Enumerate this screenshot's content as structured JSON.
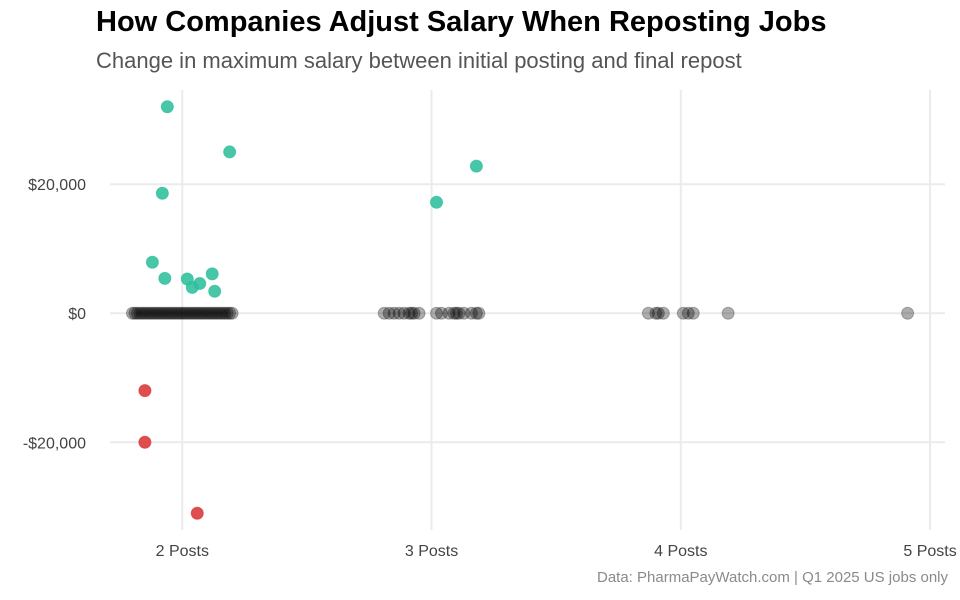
{
  "chart_data": {
    "type": "scatter",
    "title": "How Companies Adjust Salary When Reposting Jobs",
    "subtitle": "Change in maximum salary between initial posting and final repost",
    "caption": "Data: PharmaPayWatch.com | Q1 2025 US jobs only",
    "xlabel": "",
    "ylabel": "",
    "x_ticks": [
      {
        "value": 2,
        "label": "2 Posts"
      },
      {
        "value": 3,
        "label": "3 Posts"
      },
      {
        "value": 4,
        "label": "4 Posts"
      },
      {
        "value": 5,
        "label": "5 Posts"
      }
    ],
    "y_ticks": [
      {
        "value": 20000,
        "label": "$20,000"
      },
      {
        "value": 0,
        "label": "$0"
      },
      {
        "value": -20000,
        "label": "-$20,000"
      }
    ],
    "xlim": [
      1.71,
      5.06
    ],
    "ylim": [
      -33600,
      34600
    ],
    "grid": true,
    "colors": {
      "increase": "#2dbf9c",
      "decrease": "#d93636",
      "no_change": "#000000",
      "grid": "#ebebeb"
    },
    "series": [
      {
        "category": "increase",
        "points": [
          [
            1.94,
            32000
          ],
          [
            2.19,
            25000
          ],
          [
            1.92,
            18600
          ],
          [
            1.88,
            7900
          ],
          [
            1.93,
            5400
          ],
          [
            2.02,
            5300
          ],
          [
            2.04,
            4000
          ],
          [
            2.07,
            4600
          ],
          [
            2.12,
            6100
          ],
          [
            2.13,
            3400
          ],
          [
            3.02,
            17200
          ],
          [
            3.18,
            22800
          ]
        ]
      },
      {
        "category": "decrease",
        "points": [
          [
            1.85,
            -12000
          ],
          [
            1.85,
            -20000
          ],
          [
            2.06,
            -31000
          ]
        ]
      },
      {
        "category": "no_change",
        "points": [
          [
            1.8,
            0
          ],
          [
            1.81,
            0
          ],
          [
            1.82,
            0
          ],
          [
            1.83,
            0
          ],
          [
            1.84,
            0
          ],
          [
            1.85,
            0
          ],
          [
            1.86,
            0
          ],
          [
            1.87,
            0
          ],
          [
            1.88,
            0
          ],
          [
            1.89,
            0
          ],
          [
            1.9,
            0
          ],
          [
            1.91,
            0
          ],
          [
            1.92,
            0
          ],
          [
            1.93,
            0
          ],
          [
            1.94,
            0
          ],
          [
            1.95,
            0
          ],
          [
            1.96,
            0
          ],
          [
            1.97,
            0
          ],
          [
            1.98,
            0
          ],
          [
            1.99,
            0
          ],
          [
            2.0,
            0
          ],
          [
            2.01,
            0
          ],
          [
            2.02,
            0
          ],
          [
            2.03,
            0
          ],
          [
            2.04,
            0
          ],
          [
            2.05,
            0
          ],
          [
            2.06,
            0
          ],
          [
            2.07,
            0
          ],
          [
            2.08,
            0
          ],
          [
            2.09,
            0
          ],
          [
            2.1,
            0
          ],
          [
            2.11,
            0
          ],
          [
            2.12,
            0
          ],
          [
            2.13,
            0
          ],
          [
            2.14,
            0
          ],
          [
            2.15,
            0
          ],
          [
            2.16,
            0
          ],
          [
            2.17,
            0
          ],
          [
            2.18,
            0
          ],
          [
            2.19,
            0
          ],
          [
            2.2,
            0
          ],
          [
            2.81,
            0
          ],
          [
            2.83,
            0
          ],
          [
            2.85,
            0
          ],
          [
            2.87,
            0
          ],
          [
            2.89,
            0
          ],
          [
            2.91,
            0
          ],
          [
            2.92,
            0
          ],
          [
            2.93,
            0
          ],
          [
            2.95,
            0
          ],
          [
            3.02,
            0
          ],
          [
            3.04,
            0
          ],
          [
            3.07,
            0
          ],
          [
            3.09,
            0
          ],
          [
            3.1,
            0
          ],
          [
            3.11,
            0
          ],
          [
            3.13,
            0
          ],
          [
            3.16,
            0
          ],
          [
            3.18,
            0
          ],
          [
            3.19,
            0
          ],
          [
            3.87,
            0
          ],
          [
            3.9,
            0
          ],
          [
            3.91,
            0
          ],
          [
            3.93,
            0
          ],
          [
            4.01,
            0
          ],
          [
            4.03,
            0
          ],
          [
            4.05,
            0
          ],
          [
            4.19,
            0
          ],
          [
            4.91,
            0
          ]
        ]
      }
    ]
  }
}
